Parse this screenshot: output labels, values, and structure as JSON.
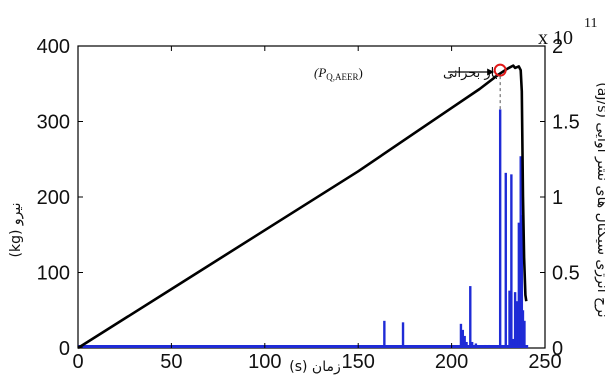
{
  "chart_data": {
    "type": "line",
    "xlabel": "زمان (s)",
    "ylabel_left": "نیرو (kg)",
    "ylabel_right": "نرخ انرژی سیگنال های نشر آوایی (aJ/s)",
    "xlim": [
      0,
      250
    ],
    "ylim_left": [
      0,
      400
    ],
    "ylim_right": [
      0,
      2
    ],
    "x_ticks": [
      "0",
      "50",
      "100",
      "150",
      "200",
      "250"
    ],
    "y_left_ticks": [
      "0",
      "100",
      "200",
      "300",
      "400"
    ],
    "y_right_ticks": [
      "0",
      "0.5",
      "1",
      "1.5",
      "2"
    ],
    "right_axis_multiplier": {
      "base": "x 10",
      "exponent": "11"
    },
    "annotation": {
      "label": "بار بحرانی",
      "math_label": "(P",
      "math_sub": "Q,AEER",
      "math_close": ")",
      "x": 226,
      "y": 368
    },
    "series": [
      {
        "axis": "left",
        "color": "#000000",
        "points": [
          [
            0,
            0
          ],
          [
            50,
            78
          ],
          [
            100,
            156
          ],
          [
            150,
            234
          ],
          [
            200,
            318
          ],
          [
            215,
            343
          ],
          [
            225,
            362
          ],
          [
            230,
            370
          ],
          [
            233,
            374
          ],
          [
            234,
            371
          ],
          [
            236,
            373
          ],
          [
            237,
            368
          ],
          [
            237.6,
            340
          ],
          [
            238.2,
            200
          ],
          [
            238.8,
            120
          ],
          [
            239.5,
            70
          ],
          [
            240,
            62
          ]
        ]
      },
      {
        "axis": "right",
        "type": "bar",
        "color": "#1f2bd6",
        "bars": [
          [
            164,
            0.18
          ],
          [
            174,
            0.17
          ],
          [
            205,
            0.16
          ],
          [
            206,
            0.12
          ],
          [
            207,
            0.08
          ],
          [
            208,
            0.04
          ],
          [
            210,
            0.41
          ],
          [
            211,
            0.04
          ],
          [
            213,
            0.03
          ],
          [
            226,
            1.58
          ],
          [
            229,
            1.16
          ],
          [
            231,
            0.38
          ],
          [
            232,
            1.15
          ],
          [
            234,
            0.37
          ],
          [
            235,
            0.31
          ],
          [
            236,
            0.83
          ],
          [
            237,
            1.27
          ],
          [
            237.6,
            0.88
          ],
          [
            238.2,
            0.25
          ],
          [
            239,
            0.18
          ],
          [
            233,
            0.06
          ],
          [
            227,
            0.02
          ],
          [
            218,
            0.02
          ],
          [
            220,
            0.02
          ]
        ]
      }
    ]
  }
}
